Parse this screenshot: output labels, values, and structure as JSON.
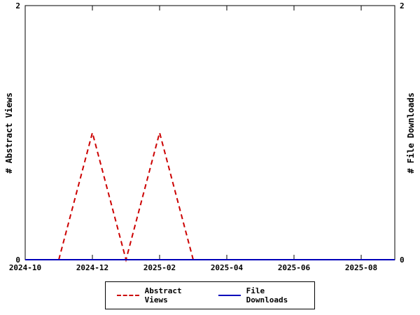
{
  "chart_data": {
    "type": "line",
    "title": "",
    "ylabel_left": "# Abstract Views",
    "ylabel_right": "# File Downloads",
    "ylim": [
      0,
      2
    ],
    "y_ticks": [
      0,
      2
    ],
    "x_range": [
      "2024-10",
      "2025-09"
    ],
    "x_ticks": [
      "2024-10",
      "2024-12",
      "2025-02",
      "2025-04",
      "2025-06",
      "2025-08"
    ],
    "grid": false,
    "legend_position": "bottom-center",
    "series": [
      {
        "name": "Abstract Views",
        "color": "#cc0000",
        "style": "dashed",
        "axis": "left",
        "points": [
          [
            "2024-11",
            0
          ],
          [
            "2024-12",
            1
          ],
          [
            "2025-01",
            0
          ],
          [
            "2025-02",
            1
          ],
          [
            "2025-03",
            0
          ]
        ]
      },
      {
        "name": "File Downloads",
        "color": "#0000bb",
        "style": "solid",
        "axis": "right",
        "points": [
          [
            "2024-10",
            0
          ],
          [
            "2025-09",
            0
          ]
        ]
      }
    ]
  }
}
